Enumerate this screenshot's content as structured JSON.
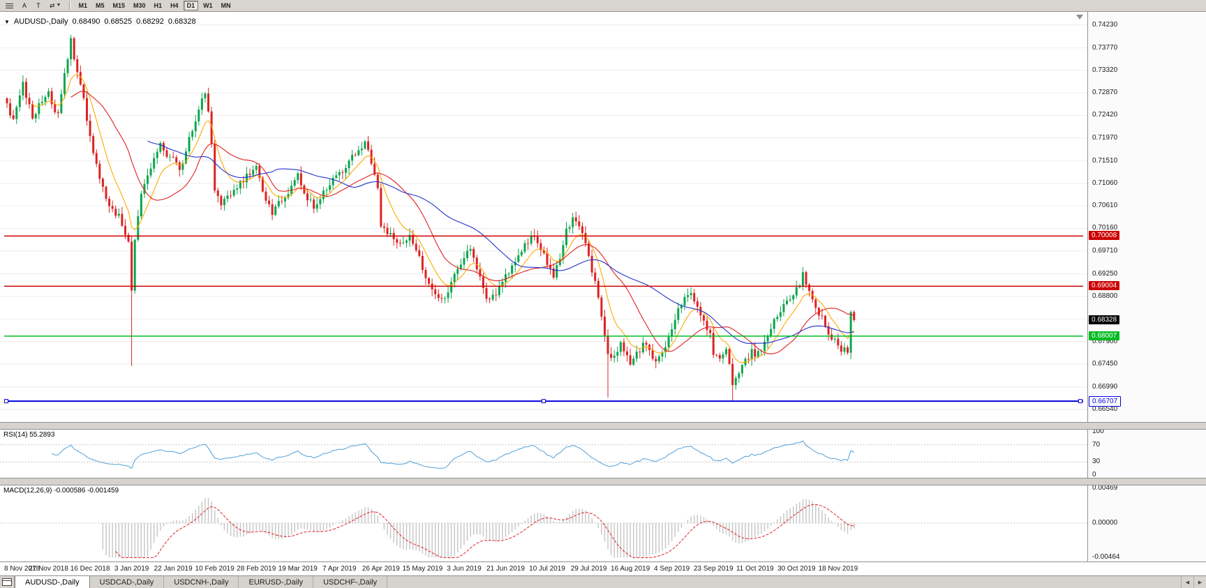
{
  "toolbar": {
    "a_tool_label": "A",
    "t_tool_label": "T",
    "arrows_label": "⇄",
    "timeframes": [
      "M1",
      "M5",
      "M15",
      "M30",
      "H1",
      "H4",
      "D1",
      "W1",
      "MN"
    ],
    "active_timeframe": "D1"
  },
  "chart": {
    "title": "AUDUSD-,Daily",
    "ohlc": {
      "open": "0.68490",
      "high": "0.68525",
      "low": "0.68292",
      "close": "0.68328"
    },
    "current_price_tag": "0.68328",
    "current_price": 0.68328,
    "price_axis": {
      "min": 0.6636,
      "max": 0.7442,
      "labels": [
        "0.74230",
        "0.73770",
        "0.73320",
        "0.72870",
        "0.72420",
        "0.71970",
        "0.71510",
        "0.71060",
        "0.70610",
        "0.70160",
        "0.69710",
        "0.69250",
        "0.68800",
        "0.68350",
        "0.67900",
        "0.67450",
        "0.66990",
        "0.66540"
      ]
    },
    "hlines": [
      {
        "price": 0.70008,
        "label": "0.70008",
        "color": "#cc0000",
        "style": "solid",
        "tag_bg": "#cc0000",
        "tag_fg": "#ffffff"
      },
      {
        "price": 0.69004,
        "label": "0.69004",
        "color": "#cc0000",
        "style": "solid",
        "tag_bg": "#cc0000",
        "tag_fg": "#ffffff"
      },
      {
        "price": 0.68007,
        "label": "0.68007",
        "color": "#00bb22",
        "style": "solid",
        "tag_bg": "#00bb22",
        "tag_fg": "#ffffff"
      },
      {
        "price": 0.66707,
        "label": "0.66707",
        "color": "#0000dd",
        "style": "handles",
        "tag_bg": "#ffffff",
        "tag_fg": "#0000dd"
      }
    ],
    "colors": {
      "up": "#0ca64e",
      "down": "#dd2222",
      "ma_fast": "#ffaa00",
      "ma_mid": "#e02020",
      "ma_slow": "#2233cc",
      "grid": "#ededed",
      "rsi": "#4f9fd8",
      "macd_hist": "#c4c4c4",
      "macd_signal": "#dd2222"
    }
  },
  "chart_data": {
    "type": "candlestick",
    "symbol": "AUDUSD-",
    "timeframe": "Daily",
    "bars": 266,
    "bars_per_label": 13,
    "x_labels": [
      "8 Nov 2018",
      "27 Nov 2018",
      "16 Dec 2018",
      "3 Jan 2019",
      "22 Jan 2019",
      "10 Feb 2019",
      "28 Feb 2019",
      "19 Mar 2019",
      "7 Apr 2019",
      "26 Apr 2019",
      "15 May 2019",
      "3 Jun 2019",
      "21 Jun 2019",
      "10 Jul 2019",
      "29 Jul 2019",
      "16 Aug 2019",
      "4 Sep 2019",
      "23 Sep 2019",
      "11 Oct 2019",
      "30 Oct 2019",
      "18 Nov 2019"
    ],
    "last_ohlc": {
      "open": 0.6849,
      "high": 0.68525,
      "low": 0.68292,
      "close": 0.68328
    },
    "close_waypoints": [
      [
        0,
        0.7265
      ],
      [
        2,
        0.723
      ],
      [
        5,
        0.7305
      ],
      [
        8,
        0.724
      ],
      [
        11,
        0.727
      ],
      [
        13,
        0.7285
      ],
      [
        16,
        0.724
      ],
      [
        18,
        0.733
      ],
      [
        20,
        0.739
      ],
      [
        22,
        0.733
      ],
      [
        24,
        0.727
      ],
      [
        26,
        0.72
      ],
      [
        29,
        0.712
      ],
      [
        32,
        0.706
      ],
      [
        35,
        0.704
      ],
      [
        37,
        0.701
      ],
      [
        38,
        0.6985
      ],
      [
        39,
        0.689
      ],
      [
        40,
        0.6995
      ],
      [
        42,
        0.709
      ],
      [
        45,
        0.714
      ],
      [
        48,
        0.719
      ],
      [
        50,
        0.7155
      ],
      [
        52,
        0.716
      ],
      [
        54,
        0.713
      ],
      [
        56,
        0.7175
      ],
      [
        58,
        0.721
      ],
      [
        60,
        0.725
      ],
      [
        62,
        0.729
      ],
      [
        63,
        0.725
      ],
      [
        64,
        0.718
      ],
      [
        65,
        0.709
      ],
      [
        67,
        0.706
      ],
      [
        70,
        0.7085
      ],
      [
        73,
        0.711
      ],
      [
        76,
        0.7125
      ],
      [
        78,
        0.714
      ],
      [
        80,
        0.709
      ],
      [
        83,
        0.705
      ],
      [
        86,
        0.7075
      ],
      [
        89,
        0.71
      ],
      [
        91,
        0.7125
      ],
      [
        93,
        0.708
      ],
      [
        96,
        0.706
      ],
      [
        99,
        0.709
      ],
      [
        102,
        0.7115
      ],
      [
        104,
        0.7125
      ],
      [
        107,
        0.715
      ],
      [
        110,
        0.7175
      ],
      [
        112,
        0.719
      ],
      [
        114,
        0.715
      ],
      [
        116,
        0.709
      ],
      [
        117,
        0.702
      ],
      [
        120,
        0.7
      ],
      [
        123,
        0.6985
      ],
      [
        126,
        0.7
      ],
      [
        128,
        0.6975
      ],
      [
        130,
        0.6935
      ],
      [
        132,
        0.6905
      ],
      [
        134,
        0.6885
      ],
      [
        136,
        0.687
      ],
      [
        138,
        0.689
      ],
      [
        140,
        0.6925
      ],
      [
        142,
        0.6945
      ],
      [
        143,
        0.696
      ],
      [
        145,
        0.6975
      ],
      [
        147,
        0.6935
      ],
      [
        149,
        0.6895
      ],
      [
        151,
        0.687
      ],
      [
        153,
        0.6885
      ],
      [
        156,
        0.692
      ],
      [
        158,
        0.6945
      ],
      [
        160,
        0.6965
      ],
      [
        162,
        0.6985
      ],
      [
        164,
        0.7
      ],
      [
        166,
        0.699
      ],
      [
        168,
        0.6965
      ],
      [
        169,
        0.6945
      ],
      [
        171,
        0.692
      ],
      [
        173,
        0.6955
      ],
      [
        175,
        0.701
      ],
      [
        177,
        0.704
      ],
      [
        179,
        0.7025
      ],
      [
        181,
        0.699
      ],
      [
        182,
        0.696
      ],
      [
        184,
        0.6905
      ],
      [
        186,
        0.684
      ],
      [
        188,
        0.677
      ],
      [
        190,
        0.6755
      ],
      [
        192,
        0.6785
      ],
      [
        194,
        0.6765
      ],
      [
        195,
        0.6745
      ],
      [
        197,
        0.6765
      ],
      [
        199,
        0.6785
      ],
      [
        201,
        0.677
      ],
      [
        203,
        0.6745
      ],
      [
        205,
        0.677
      ],
      [
        207,
        0.6795
      ],
      [
        208,
        0.681
      ],
      [
        210,
        0.685
      ],
      [
        212,
        0.6875
      ],
      [
        214,
        0.688
      ],
      [
        216,
        0.686
      ],
      [
        218,
        0.683
      ],
      [
        220,
        0.68
      ],
      [
        221,
        0.677
      ],
      [
        223,
        0.675
      ],
      [
        225,
        0.6775
      ],
      [
        227,
        0.6705
      ],
      [
        229,
        0.6725
      ],
      [
        231,
        0.675
      ],
      [
        233,
        0.677
      ],
      [
        234,
        0.6755
      ],
      [
        236,
        0.6775
      ],
      [
        238,
        0.6805
      ],
      [
        240,
        0.683
      ],
      [
        242,
        0.685
      ],
      [
        244,
        0.687
      ],
      [
        246,
        0.6885
      ],
      [
        248,
        0.6905
      ],
      [
        249,
        0.6925
      ],
      [
        251,
        0.6895
      ],
      [
        253,
        0.686
      ],
      [
        255,
        0.6835
      ],
      [
        257,
        0.6805
      ],
      [
        259,
        0.679
      ],
      [
        261,
        0.6775
      ],
      [
        263,
        0.6772
      ],
      [
        264,
        0.6849
      ],
      [
        265,
        0.68328
      ]
    ],
    "wick_lows": [
      [
        39,
        0.6741
      ],
      [
        188,
        0.6678
      ],
      [
        227,
        0.6671
      ]
    ],
    "moving_averages": [
      {
        "type": "ema",
        "period": 9,
        "color": "#ffaa00"
      },
      {
        "type": "sma",
        "period": 21,
        "color": "#e02020"
      },
      {
        "type": "sma",
        "period": 45,
        "color": "#2233cc"
      }
    ]
  },
  "rsi": {
    "label": "RSI(14) 55.2893",
    "period": 14,
    "value": 55.2893,
    "levels": [
      "100",
      "70",
      "30",
      "0"
    ],
    "level_values": [
      100,
      70,
      30,
      0
    ]
  },
  "macd": {
    "label": "MACD(12,26,9) -0.000586 -0.001459",
    "fast": 12,
    "slow": 26,
    "signal": 9,
    "macd_value": -0.000586,
    "signal_value": -0.001459,
    "levels": [
      "0.00469",
      "0.00000",
      "-0.00464"
    ],
    "level_values": [
      0.00469,
      0,
      -0.00464
    ],
    "range": 0.00469
  },
  "tabs": {
    "active_index": 0,
    "items": [
      "AUDUSD-,Daily",
      "USDCAD-,Daily",
      "USDCNH-,Daily",
      "EURUSD-,Daily",
      "USDCHF-,Daily"
    ]
  }
}
